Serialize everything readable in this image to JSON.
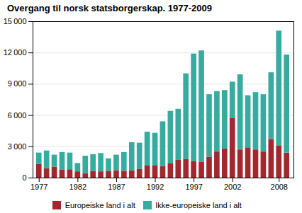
{
  "chart_data": {
    "type": "bar",
    "title": "Overgang til norsk statsborgerskap. 1977-2009",
    "stacked": true,
    "x": [
      1977,
      1978,
      1979,
      1980,
      1981,
      1982,
      1983,
      1984,
      1985,
      1986,
      1987,
      1988,
      1989,
      1990,
      1991,
      1992,
      1993,
      1994,
      1995,
      1996,
      1997,
      1998,
      1999,
      2000,
      2001,
      2002,
      2003,
      2004,
      2005,
      2006,
      2007,
      2008,
      2009
    ],
    "series": [
      {
        "name": "Europeiske land i alt",
        "color": "#a0282e",
        "values": [
          1300,
          900,
          1050,
          750,
          800,
          600,
          400,
          650,
          600,
          650,
          700,
          650,
          700,
          850,
          1200,
          1200,
          1100,
          1400,
          1700,
          1800,
          1600,
          1500,
          2000,
          2500,
          2800,
          5700,
          2700,
          2900,
          2700,
          2500,
          3700,
          3100,
          2400
        ]
      },
      {
        "name": "Ikke-europeiske land i alt",
        "color": "#36aba0",
        "values": [
          1100,
          1700,
          1150,
          1700,
          1600,
          800,
          1700,
          1600,
          1750,
          1200,
          1500,
          1800,
          2700,
          2500,
          3200,
          3100,
          4300,
          5000,
          4900,
          8200,
          10300,
          10700,
          6000,
          5800,
          5600,
          3500,
          7200,
          5000,
          5500,
          5500,
          6400,
          11000,
          9400
        ]
      }
    ],
    "xlim": [
      1976.2,
      2009.9
    ],
    "xticks": [
      1977,
      1982,
      1987,
      1992,
      1997,
      2002,
      2008
    ],
    "ylim": [
      0,
      15000
    ],
    "yticks": [
      0,
      {
        "value": 3000,
        "label": "3 000"
      },
      {
        "value": 6000,
        "label": "6 000"
      },
      {
        "value": 9000,
        "label": "9 000"
      },
      {
        "value": 12000,
        "label": "12 000"
      },
      {
        "value": 15000,
        "label": "15 000"
      }
    ],
    "grid": true,
    "legend": "bottom"
  }
}
